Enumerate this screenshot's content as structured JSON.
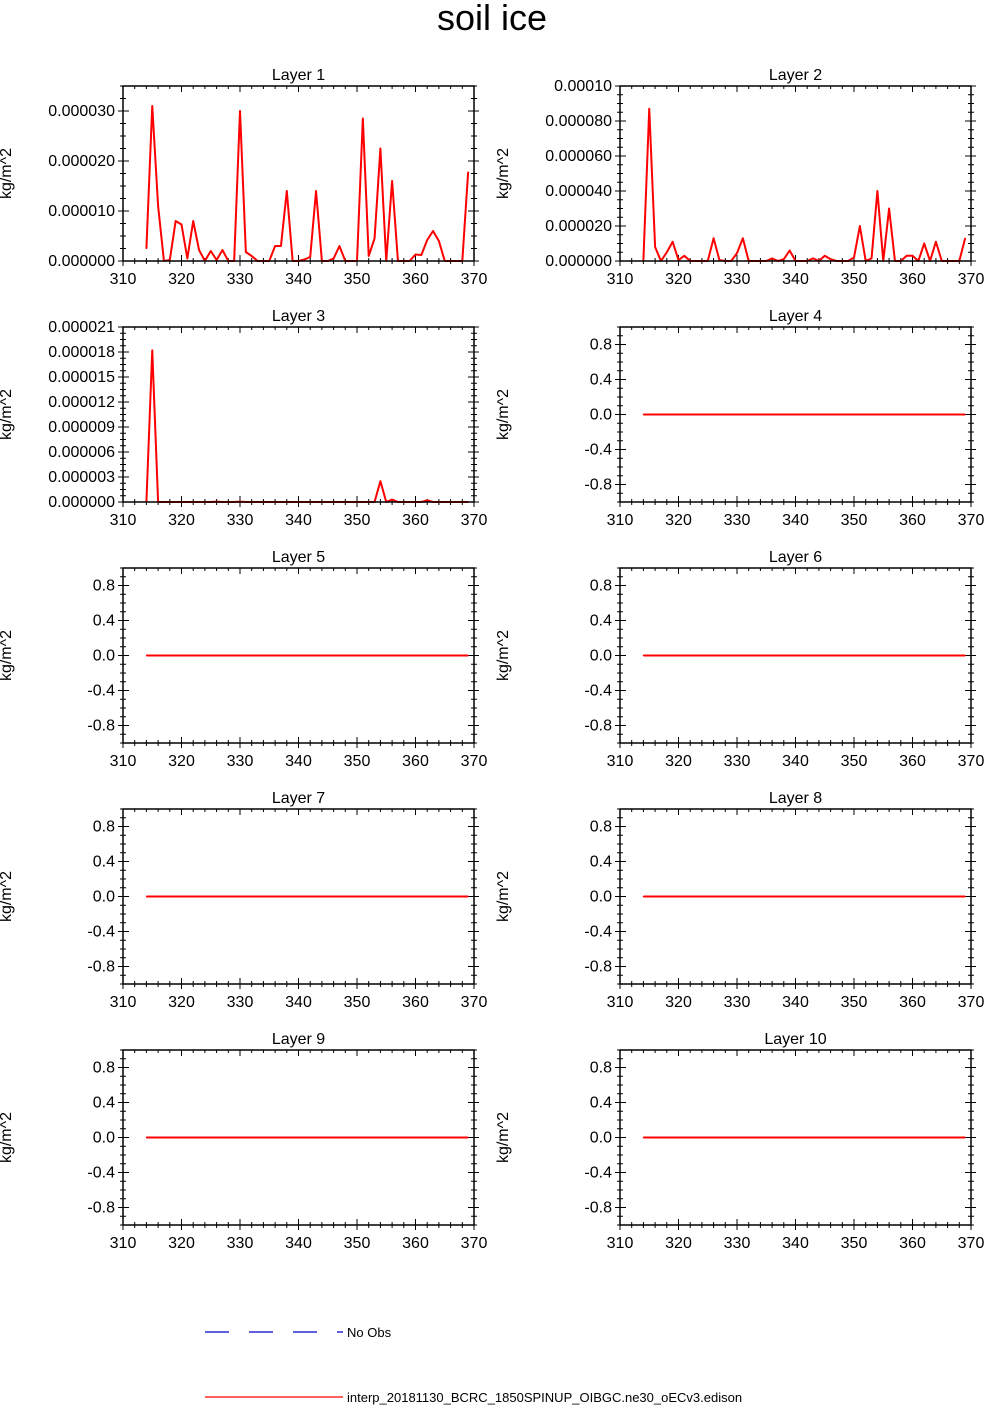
{
  "title": "soil ice",
  "legend": {
    "obs_label": "No Obs",
    "obs_color": "#0000cc",
    "model_label": "interp_20181130_BCRC_1850SPINUP_OIBGC.ne30_oECv3.edison",
    "model_color": "#ff0000"
  },
  "chart_data": [
    {
      "type": "line",
      "title": "Layer 1",
      "ylabel": "kg/m^2",
      "xlim": [
        310,
        370
      ],
      "xticks": [
        "310",
        "320",
        "330",
        "340",
        "350",
        "360",
        "370"
      ],
      "ylim": [
        0,
        3.5e-05
      ],
      "yticks": [
        [
          "0.000000",
          0
        ],
        [
          "0.000010",
          1e-05
        ],
        [
          "0.000020",
          2e-05
        ],
        [
          "0.000030",
          3e-05
        ]
      ],
      "series": [
        {
          "color": "#ff0000",
          "x": [
            314,
            315,
            316,
            317,
            318,
            319,
            320,
            321,
            322,
            323,
            324,
            325,
            326,
            327,
            328,
            329,
            330,
            331,
            332,
            333,
            334,
            335,
            336,
            337,
            338,
            339,
            340,
            341,
            342,
            343,
            344,
            345,
            346,
            347,
            348,
            349,
            350,
            351,
            352,
            353,
            354,
            355,
            356,
            357,
            358,
            359,
            360,
            361,
            362,
            363,
            364,
            365,
            366,
            367,
            368,
            369
          ],
          "y": [
            2.5e-06,
            3.1e-05,
            1.1e-05,
            0,
            2e-07,
            8e-06,
            7.3e-06,
            5e-07,
            8e-06,
            2.2e-06,
            0,
            2e-06,
            2e-07,
            2.2e-06,
            0,
            0,
            3e-05,
            1.8e-06,
            1e-06,
            0,
            0,
            0,
            3e-06,
            3e-06,
            1.4e-05,
            0,
            0,
            3e-07,
            8e-07,
            1.4e-05,
            0,
            0,
            5e-07,
            3e-06,
            0,
            0,
            0,
            2.85e-05,
            1e-06,
            4.5e-06,
            2.25e-05,
            0,
            1.6e-05,
            0,
            0,
            0,
            1.3e-06,
            1.2e-06,
            4.2e-06,
            6e-06,
            4e-06,
            0,
            0,
            0,
            0,
            1.78e-05
          ]
        }
      ]
    },
    {
      "type": "line",
      "title": "Layer 2",
      "ylabel": "kg/m^2",
      "xlim": [
        310,
        370
      ],
      "xticks": [
        "310",
        "320",
        "330",
        "340",
        "350",
        "360",
        "370"
      ],
      "ylim": [
        0,
        0.0001
      ],
      "yticks": [
        [
          "0.000000",
          0
        ],
        [
          "0.000020",
          2e-05
        ],
        [
          "0.000040",
          4e-05
        ],
        [
          "0.000060",
          6e-05
        ],
        [
          "0.000080",
          8e-05
        ],
        [
          "0.00010",
          0.0001
        ]
      ],
      "series": [
        {
          "color": "#ff0000",
          "x": [
            314,
            315,
            316,
            317,
            318,
            319,
            320,
            321,
            322,
            323,
            324,
            325,
            326,
            327,
            328,
            329,
            330,
            331,
            332,
            333,
            334,
            335,
            336,
            337,
            338,
            339,
            340,
            341,
            342,
            343,
            344,
            345,
            346,
            347,
            348,
            349,
            350,
            351,
            352,
            353,
            354,
            355,
            356,
            357,
            358,
            359,
            360,
            361,
            362,
            363,
            364,
            365,
            366,
            367,
            368,
            369
          ],
          "y": [
            5e-07,
            8.7e-05,
            8e-06,
            0,
            5e-06,
            1.1e-05,
            5e-07,
            3e-06,
            0,
            0,
            0,
            0,
            1.3e-05,
            5e-07,
            0,
            0,
            4.5e-06,
            1.3e-05,
            0,
            0,
            0,
            0,
            1.5e-06,
            0,
            1e-06,
            6e-06,
            0,
            0,
            0,
            1.5e-06,
            0,
            3e-06,
            1e-06,
            0,
            0,
            0,
            2e-06,
            2e-05,
            0,
            1.5e-06,
            4e-05,
            0,
            3e-05,
            0,
            0,
            3e-06,
            3e-06,
            0,
            1e-05,
            0,
            1.1e-05,
            0,
            0,
            0,
            0,
            1.3e-05
          ]
        }
      ]
    },
    {
      "type": "line",
      "title": "Layer 3",
      "ylabel": "kg/m^2",
      "xlim": [
        310,
        370
      ],
      "xticks": [
        "310",
        "320",
        "330",
        "340",
        "350",
        "360",
        "370"
      ],
      "ylim": [
        0,
        2.1e-05
      ],
      "yticks": [
        [
          "0.000000",
          0
        ],
        [
          "0.000003",
          3e-06
        ],
        [
          "0.000006",
          6e-06
        ],
        [
          "0.000009",
          9e-06
        ],
        [
          "0.000012",
          1.2e-05
        ],
        [
          "0.000015",
          1.5e-05
        ],
        [
          "0.000018",
          1.8e-05
        ],
        [
          "0.000021",
          2.1e-05
        ]
      ],
      "series": [
        {
          "color": "#ff0000",
          "x": [
            314,
            315,
            316,
            317,
            318,
            319,
            320,
            321,
            322,
            323,
            324,
            325,
            326,
            327,
            328,
            329,
            330,
            331,
            332,
            333,
            334,
            335,
            336,
            337,
            338,
            339,
            340,
            341,
            342,
            343,
            344,
            345,
            346,
            347,
            348,
            349,
            350,
            351,
            352,
            353,
            354,
            355,
            356,
            357,
            358,
            359,
            360,
            361,
            362,
            363,
            364,
            365,
            366,
            367,
            368,
            369
          ],
          "y": [
            0,
            1.82e-05,
            0,
            0,
            0,
            0,
            0,
            0,
            0,
            0,
            0,
            0,
            5e-08,
            0,
            0,
            0,
            5e-08,
            0,
            0,
            0,
            0,
            0,
            0,
            0,
            0,
            0,
            0,
            0,
            0,
            0,
            0,
            0,
            0,
            0,
            0,
            0,
            0,
            0,
            0,
            0,
            2.5e-06,
            0,
            3e-07,
            0,
            0,
            0,
            0,
            0,
            2e-07,
            0,
            0,
            0,
            0,
            0,
            0,
            0
          ]
        }
      ]
    },
    {
      "type": "line",
      "title": "Layer 4",
      "ylabel": "kg/m^2",
      "xlim": [
        310,
        370
      ],
      "xticks": [
        "310",
        "320",
        "330",
        "340",
        "350",
        "360",
        "370"
      ],
      "ylim": [
        -1,
        1
      ],
      "yticks": [
        [
          "-0.8",
          -0.8
        ],
        [
          "-0.4",
          -0.4
        ],
        [
          "0.0",
          0
        ],
        [
          "0.4",
          0.4
        ],
        [
          "0.8",
          0.8
        ]
      ],
      "series": [
        {
          "color": "#ff0000",
          "x": [
            314,
            369
          ],
          "y": [
            0,
            0
          ]
        }
      ]
    },
    {
      "type": "line",
      "title": "Layer 5",
      "ylabel": "kg/m^2",
      "xlim": [
        310,
        370
      ],
      "xticks": [
        "310",
        "320",
        "330",
        "340",
        "350",
        "360",
        "370"
      ],
      "ylim": [
        -1,
        1
      ],
      "yticks": [
        [
          "-0.8",
          -0.8
        ],
        [
          "-0.4",
          -0.4
        ],
        [
          "0.0",
          0
        ],
        [
          "0.4",
          0.4
        ],
        [
          "0.8",
          0.8
        ]
      ],
      "series": [
        {
          "color": "#ff0000",
          "x": [
            314,
            369
          ],
          "y": [
            0,
            0
          ]
        }
      ]
    },
    {
      "type": "line",
      "title": "Layer 6",
      "ylabel": "kg/m^2",
      "xlim": [
        310,
        370
      ],
      "xticks": [
        "310",
        "320",
        "330",
        "340",
        "350",
        "360",
        "370"
      ],
      "ylim": [
        -1,
        1
      ],
      "yticks": [
        [
          "-0.8",
          -0.8
        ],
        [
          "-0.4",
          -0.4
        ],
        [
          "0.0",
          0
        ],
        [
          "0.4",
          0.4
        ],
        [
          "0.8",
          0.8
        ]
      ],
      "series": [
        {
          "color": "#ff0000",
          "x": [
            314,
            369
          ],
          "y": [
            0,
            0
          ]
        }
      ]
    },
    {
      "type": "line",
      "title": "Layer 7",
      "ylabel": "kg/m^2",
      "xlim": [
        310,
        370
      ],
      "xticks": [
        "310",
        "320",
        "330",
        "340",
        "350",
        "360",
        "370"
      ],
      "ylim": [
        -1,
        1
      ],
      "yticks": [
        [
          "-0.8",
          -0.8
        ],
        [
          "-0.4",
          -0.4
        ],
        [
          "0.0",
          0
        ],
        [
          "0.4",
          0.4
        ],
        [
          "0.8",
          0.8
        ]
      ],
      "series": [
        {
          "color": "#ff0000",
          "x": [
            314,
            369
          ],
          "y": [
            0,
            0
          ]
        }
      ]
    },
    {
      "type": "line",
      "title": "Layer 8",
      "ylabel": "kg/m^2",
      "xlim": [
        310,
        370
      ],
      "xticks": [
        "310",
        "320",
        "330",
        "340",
        "350",
        "360",
        "370"
      ],
      "ylim": [
        -1,
        1
      ],
      "yticks": [
        [
          "-0.8",
          -0.8
        ],
        [
          "-0.4",
          -0.4
        ],
        [
          "0.0",
          0
        ],
        [
          "0.4",
          0.4
        ],
        [
          "0.8",
          0.8
        ]
      ],
      "series": [
        {
          "color": "#ff0000",
          "x": [
            314,
            369
          ],
          "y": [
            0,
            0
          ]
        }
      ]
    },
    {
      "type": "line",
      "title": "Layer 9",
      "ylabel": "kg/m^2",
      "xlim": [
        310,
        370
      ],
      "xticks": [
        "310",
        "320",
        "330",
        "340",
        "350",
        "360",
        "370"
      ],
      "ylim": [
        -1,
        1
      ],
      "yticks": [
        [
          "-0.8",
          -0.8
        ],
        [
          "-0.4",
          -0.4
        ],
        [
          "0.0",
          0
        ],
        [
          "0.4",
          0.4
        ],
        [
          "0.8",
          0.8
        ]
      ],
      "series": [
        {
          "color": "#ff0000",
          "x": [
            314,
            369
          ],
          "y": [
            0,
            0
          ]
        }
      ]
    },
    {
      "type": "line",
      "title": "Layer 10",
      "ylabel": "kg/m^2",
      "xlim": [
        310,
        370
      ],
      "xticks": [
        "310",
        "320",
        "330",
        "340",
        "350",
        "360",
        "370"
      ],
      "ylim": [
        -1,
        1
      ],
      "yticks": [
        [
          "-0.8",
          -0.8
        ],
        [
          "-0.4",
          -0.4
        ],
        [
          "0.0",
          0
        ],
        [
          "0.4",
          0.4
        ],
        [
          "0.8",
          0.8
        ]
      ],
      "series": [
        {
          "color": "#ff0000",
          "x": [
            314,
            369
          ],
          "y": [
            0,
            0
          ]
        }
      ]
    }
  ]
}
